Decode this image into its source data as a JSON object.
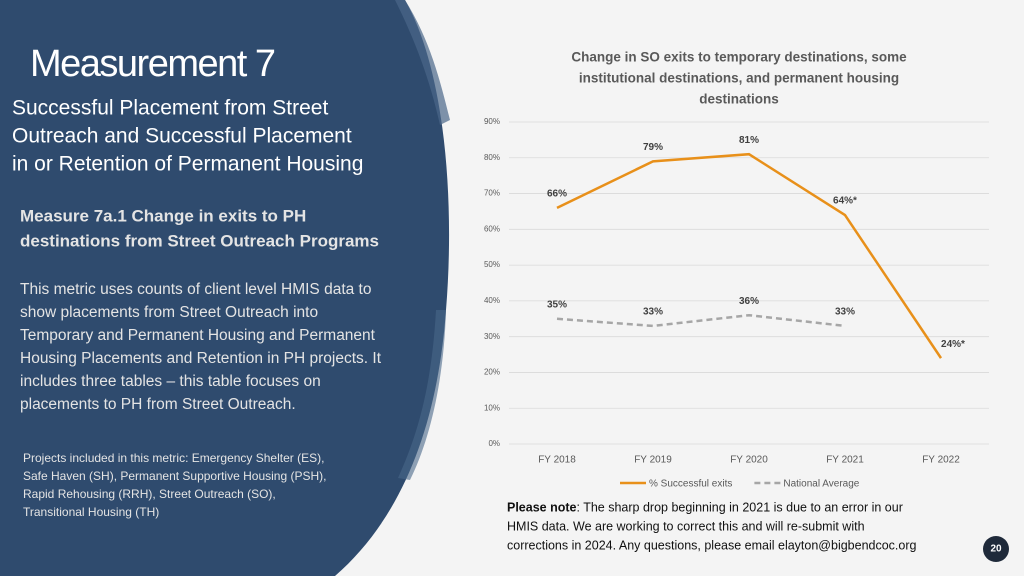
{
  "slide": {
    "title": "Measurement 7",
    "subtitle_lines": [
      "Successful Placement from Street",
      "Outreach and Successful Placement",
      "in or Retention of Permanent Housing"
    ],
    "measure_lines": [
      "Measure 7a.1 Change in exits to PH",
      "destinations from Street Outreach Programs"
    ],
    "body_lines": [
      "This metric uses counts of client level HMIS data to",
      "show placements from Street Outreach into",
      "Temporary and Permanent Housing and Permanent",
      "Housing Placements and Retention in PH projects. It",
      "includes three tables – this table focuses on",
      "placements to PH from Street Outreach."
    ],
    "projects_lines": [
      "Projects included in this metric: Emergency Shelter (ES),",
      "Safe Haven (SH), Permanent Supportive Housing (PSH),",
      "Rapid Rehousing (RRH), Street Outreach (SO),",
      "Transitional Housing (TH)"
    ],
    "note_bold": "Please note",
    "note_lines": [
      ": The sharp drop beginning in 2021 is due to an error in our",
      "HMIS data. We are working to correct this and will re-submit with",
      "corrections in 2024. Any questions, please email elayton@bigbendcoc.org"
    ],
    "page_number": "20"
  },
  "chart_data": {
    "type": "line",
    "title_lines": [
      "Change in SO exits to temporary destinations, some",
      "institutional destinations, and permanent housing",
      "destinations"
    ],
    "categories": [
      "FY 2018",
      "FY 2019",
      "FY 2020",
      "FY 2021",
      "FY 2022"
    ],
    "series": [
      {
        "name": "% Successful exits",
        "color": "#e8901a",
        "dashed": false,
        "values": [
          66,
          79,
          81,
          64,
          24
        ],
        "value_labels": [
          "66%",
          "79%",
          "81%",
          "64%*",
          "24%*"
        ]
      },
      {
        "name": "National Average",
        "color": "#a6a6a6",
        "dashed": true,
        "values": [
          35,
          33,
          36,
          33,
          null
        ],
        "value_labels": [
          "35%",
          "33%",
          "36%",
          "33%",
          null
        ]
      }
    ],
    "ylim": [
      0,
      90
    ],
    "yticks": [
      {
        "value": 0,
        "label": "0%"
      },
      {
        "value": 10,
        "label": "10%"
      },
      {
        "value": 20,
        "label": "20%"
      },
      {
        "value": 30,
        "label": "30%"
      },
      {
        "value": 40,
        "label": "40%"
      },
      {
        "value": 50,
        "label": "50%"
      },
      {
        "value": 60,
        "label": "60%"
      },
      {
        "value": 70,
        "label": "70%"
      },
      {
        "value": 80,
        "label": "80%"
      },
      {
        "value": 90,
        "label": "90%"
      }
    ],
    "grid": true,
    "legend": "bottom"
  }
}
